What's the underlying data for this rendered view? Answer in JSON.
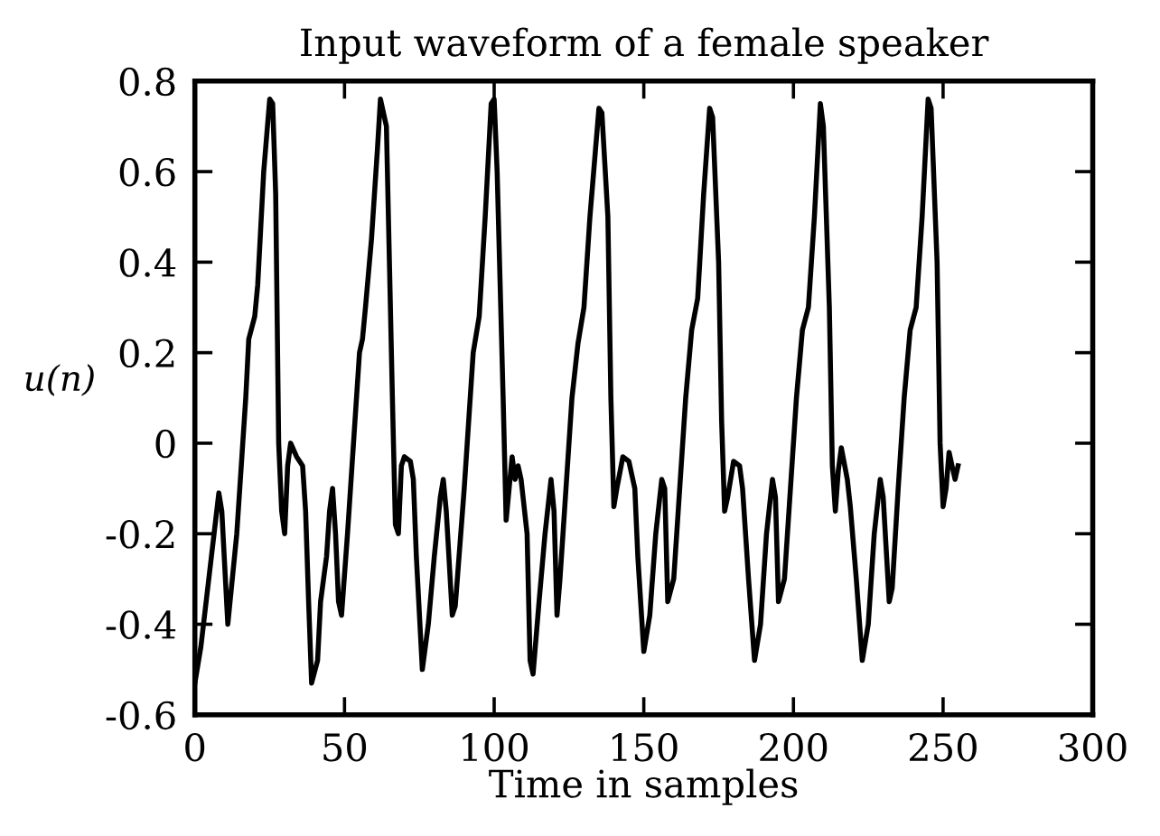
{
  "chart_data": {
    "type": "line",
    "title": "Input waveform of a female speaker",
    "xlabel": "Time in samples",
    "ylabel": "u(n)",
    "xlim": [
      0,
      300
    ],
    "xticks": [
      0,
      50,
      100,
      150,
      200,
      250,
      300
    ],
    "ylim": [
      -0.6,
      0.8
    ],
    "yticks": [
      -0.6,
      -0.4,
      -0.2,
      0,
      0.2,
      0.4,
      0.6,
      0.8
    ],
    "grid": false,
    "marker": "none",
    "line_style": "solid",
    "series": [
      {
        "color": "#000000",
        "x": [
          0,
          2,
          5,
          8,
          9,
          11,
          14,
          16,
          17,
          18,
          20,
          21,
          23,
          25,
          26,
          27,
          28,
          29,
          30,
          31,
          32,
          34,
          36,
          37,
          38,
          39,
          41,
          42,
          44,
          45,
          46,
          47,
          48,
          49,
          51,
          53,
          55,
          56,
          57,
          59,
          61,
          62,
          64,
          66,
          67,
          68,
          69,
          70,
          72,
          73,
          74,
          76,
          78,
          80,
          82,
          83,
          84,
          86,
          87,
          90,
          92,
          93,
          95,
          97,
          99,
          100,
          101,
          103,
          104,
          105,
          106,
          107,
          108,
          109,
          111,
          112,
          113,
          115,
          117,
          119,
          120,
          121,
          122,
          124,
          126,
          128,
          130,
          132,
          135,
          136,
          138,
          139,
          140,
          141,
          143,
          145,
          147,
          148,
          150,
          152,
          154,
          156,
          157,
          158,
          160,
          162,
          164,
          166,
          168,
          170,
          172,
          173,
          175,
          176,
          177,
          178,
          180,
          182,
          183,
          185,
          187,
          189,
          191,
          193,
          194,
          195,
          197,
          199,
          201,
          203,
          205,
          207,
          209,
          210,
          212,
          213,
          214,
          215,
          216,
          218,
          219,
          221,
          223,
          225,
          227,
          229,
          230,
          232,
          233,
          235,
          237,
          239,
          241,
          243,
          245,
          246,
          248,
          249,
          250,
          251,
          252,
          253,
          254,
          255
        ],
        "values": [
          -0.53,
          -0.45,
          -0.28,
          -0.11,
          -0.15,
          -0.4,
          -0.2,
          0.0,
          0.1,
          0.23,
          0.28,
          0.35,
          0.6,
          0.76,
          0.75,
          0.55,
          0.0,
          -0.15,
          -0.2,
          -0.05,
          0.0,
          -0.03,
          -0.05,
          -0.15,
          -0.35,
          -0.53,
          -0.48,
          -0.35,
          -0.25,
          -0.15,
          -0.1,
          -0.2,
          -0.35,
          -0.38,
          -0.2,
          0.0,
          0.2,
          0.23,
          0.3,
          0.45,
          0.65,
          0.76,
          0.7,
          0.1,
          -0.18,
          -0.2,
          -0.05,
          -0.03,
          -0.04,
          -0.08,
          -0.25,
          -0.5,
          -0.4,
          -0.25,
          -0.12,
          -0.08,
          -0.15,
          -0.38,
          -0.36,
          -0.1,
          0.1,
          0.2,
          0.28,
          0.5,
          0.75,
          0.76,
          0.6,
          0.1,
          -0.17,
          -0.1,
          -0.03,
          -0.08,
          -0.05,
          -0.08,
          -0.2,
          -0.48,
          -0.51,
          -0.35,
          -0.2,
          -0.08,
          -0.15,
          -0.38,
          -0.3,
          -0.1,
          0.1,
          0.22,
          0.3,
          0.5,
          0.74,
          0.73,
          0.5,
          0.1,
          -0.14,
          -0.1,
          -0.03,
          -0.04,
          -0.1,
          -0.25,
          -0.46,
          -0.38,
          -0.2,
          -0.08,
          -0.1,
          -0.35,
          -0.3,
          -0.1,
          0.1,
          0.25,
          0.32,
          0.55,
          0.74,
          0.72,
          0.4,
          0.05,
          -0.15,
          -0.12,
          -0.04,
          -0.05,
          -0.1,
          -0.3,
          -0.48,
          -0.4,
          -0.2,
          -0.08,
          -0.12,
          -0.35,
          -0.3,
          -0.1,
          0.1,
          0.25,
          0.3,
          0.5,
          0.75,
          0.7,
          0.3,
          -0.05,
          -0.15,
          -0.06,
          -0.01,
          -0.08,
          -0.14,
          -0.3,
          -0.48,
          -0.4,
          -0.2,
          -0.08,
          -0.12,
          -0.35,
          -0.32,
          -0.1,
          0.1,
          0.25,
          0.3,
          0.5,
          0.76,
          0.74,
          0.4,
          0.0,
          -0.14,
          -0.1,
          -0.02,
          -0.05,
          -0.08,
          -0.05
        ]
      }
    ]
  }
}
